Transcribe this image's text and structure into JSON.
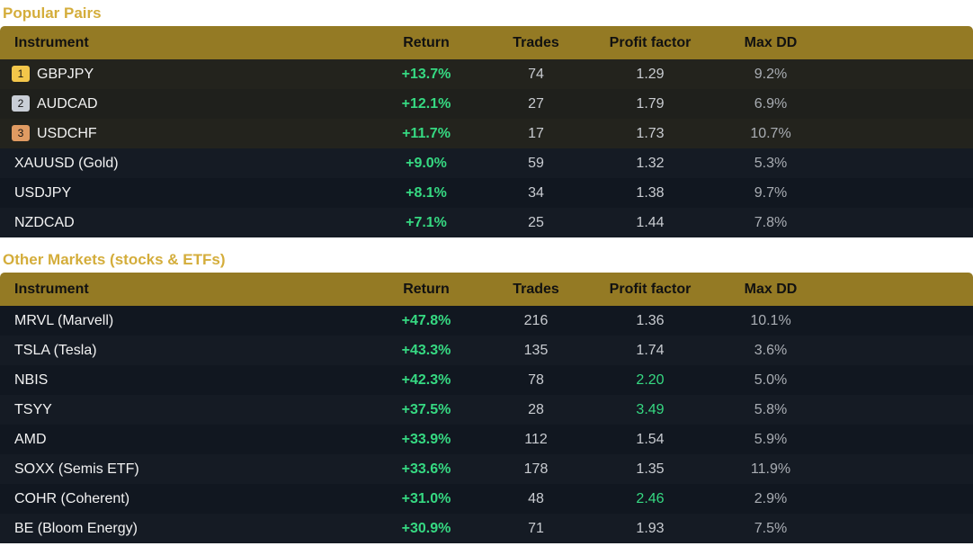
{
  "sections": [
    {
      "title": "Popular Pairs",
      "headers": [
        "Instrument",
        "Return",
        "Trades",
        "Profit factor",
        "Max DD"
      ],
      "rows": [
        {
          "rank": "1",
          "instrument": "GBPJPY",
          "return": "+13.7%",
          "trades": "74",
          "pf": "1.29",
          "dd": "9.2%"
        },
        {
          "rank": "2",
          "instrument": "AUDCAD",
          "return": "+12.1%",
          "trades": "27",
          "pf": "1.79",
          "dd": "6.9%"
        },
        {
          "rank": "3",
          "instrument": "USDCHF",
          "return": "+11.7%",
          "trades": "17",
          "pf": "1.73",
          "dd": "10.7%"
        },
        {
          "instrument": "XAUUSD (Gold)",
          "return": "+9.0%",
          "trades": "59",
          "pf": "1.32",
          "dd": "5.3%"
        },
        {
          "instrument": "USDJPY",
          "return": "+8.1%",
          "trades": "34",
          "pf": "1.38",
          "dd": "9.7%"
        },
        {
          "instrument": "NZDCAD",
          "return": "+7.1%",
          "trades": "25",
          "pf": "1.44",
          "dd": "7.8%"
        }
      ]
    },
    {
      "title": "Other Markets (stocks & ETFs)",
      "headers": [
        "Instrument",
        "Return",
        "Trades",
        "Profit factor",
        "Max DD"
      ],
      "rows": [
        {
          "instrument": "MRVL (Marvell)",
          "return": "+47.8%",
          "trades": "216",
          "pf": "1.36",
          "dd": "10.1%"
        },
        {
          "instrument": "TSLA (Tesla)",
          "return": "+43.3%",
          "trades": "135",
          "pf": "1.74",
          "dd": "3.6%"
        },
        {
          "instrument": "NBIS",
          "return": "+42.3%",
          "trades": "78",
          "pf": "2.20",
          "dd": "5.0%"
        },
        {
          "instrument": "TSYY",
          "return": "+37.5%",
          "trades": "28",
          "pf": "3.49",
          "dd": "5.8%"
        },
        {
          "instrument": "AMD",
          "return": "+33.9%",
          "trades": "112",
          "pf": "1.54",
          "dd": "5.9%"
        },
        {
          "instrument": "SOXX (Semis ETF)",
          "return": "+33.6%",
          "trades": "178",
          "pf": "1.35",
          "dd": "11.9%"
        },
        {
          "instrument": "COHR (Coherent)",
          "return": "+31.0%",
          "trades": "48",
          "pf": "2.46",
          "dd": "2.9%"
        },
        {
          "instrument": "BE (Bloom Energy)",
          "return": "+30.9%",
          "trades": "71",
          "pf": "1.93",
          "dd": "7.5%"
        }
      ]
    }
  ],
  "colors": {
    "accent_gold": "#d4ad3b",
    "header_bg": "#947a24",
    "positive": "#36d982"
  }
}
